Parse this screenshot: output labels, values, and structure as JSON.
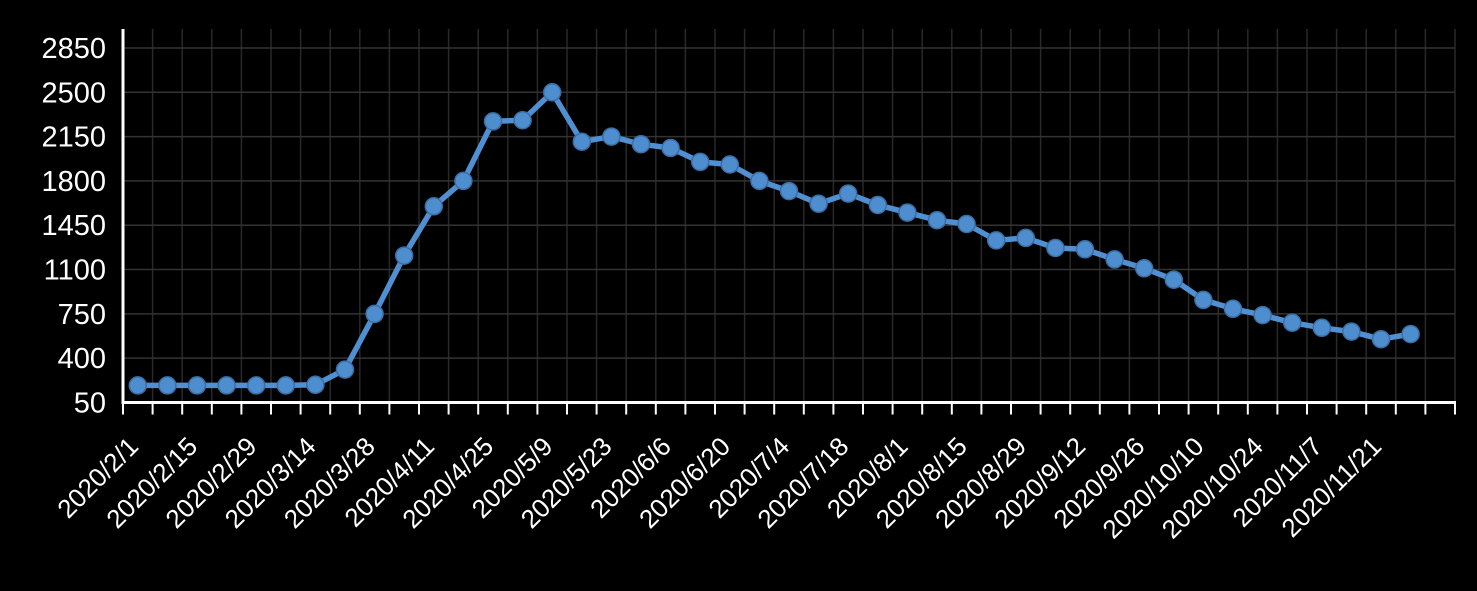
{
  "chart_data": {
    "type": "line",
    "title": "",
    "xlabel": "",
    "ylabel": "",
    "legend": "none",
    "grid": "on",
    "categories": [
      "2020/2/1",
      "2020/2/8",
      "2020/2/15",
      "2020/2/22",
      "2020/2/29",
      "2020/3/7",
      "2020/3/14",
      "2020/3/21",
      "2020/3/28",
      "2020/4/4",
      "2020/4/11",
      "2020/4/18",
      "2020/4/25",
      "2020/5/2",
      "2020/5/9",
      "2020/5/16",
      "2020/5/23",
      "2020/5/30",
      "2020/6/6",
      "2020/6/13",
      "2020/6/20",
      "2020/6/27",
      "2020/7/4",
      "2020/7/11",
      "2020/7/18",
      "2020/7/25",
      "2020/8/1",
      "2020/8/8",
      "2020/8/15",
      "2020/8/22",
      "2020/8/29",
      "2020/9/5",
      "2020/9/12",
      "2020/9/19",
      "2020/9/26",
      "2020/10/3",
      "2020/10/10",
      "2020/10/17",
      "2020/10/24",
      "2020/10/31",
      "2020/11/7",
      "2020/11/14",
      "2020/11/21",
      "2020/11/28"
    ],
    "values": [
      185,
      185,
      185,
      185,
      185,
      185,
      190,
      310,
      750,
      1210,
      1600,
      1800,
      2270,
      2280,
      2500,
      2110,
      2150,
      2090,
      2060,
      1950,
      1930,
      1800,
      1720,
      1620,
      1700,
      1610,
      1550,
      1490,
      1460,
      1330,
      1350,
      1270,
      1260,
      1180,
      1110,
      1020,
      860,
      790,
      740,
      680,
      640,
      610,
      550,
      590
    ],
    "x_tick_label_interval": 2,
    "x_tick_labels_shown": [
      "2020/2/1",
      "2020/2/15",
      "2020/2/29",
      "2020/3/14",
      "2020/3/28",
      "2020/4/11",
      "2020/4/25",
      "2020/5/9",
      "2020/5/23",
      "2020/6/6",
      "2020/6/20",
      "2020/7/4",
      "2020/7/18",
      "2020/8/1",
      "2020/8/15",
      "2020/8/29",
      "2020/9/12",
      "2020/9/26",
      "2020/10/10",
      "2020/10/24",
      "2020/11/7",
      "2020/11/21"
    ],
    "yticks": [
      50,
      400,
      750,
      1100,
      1450,
      1800,
      2150,
      2500,
      2850
    ],
    "ylim": [
      50,
      3000
    ],
    "x_label_rotation_deg": 45,
    "marker": "circle"
  },
  "colors": {
    "background": "#000000",
    "axis_line": "#ffffff",
    "tick_label": "#ffffff",
    "gridline_vertical": "#292929",
    "gridline_horizontal": "#333333",
    "series_line": "#5090d2",
    "marker_fill": "#4e8ecf",
    "marker_stroke": "#3a6fa5"
  }
}
